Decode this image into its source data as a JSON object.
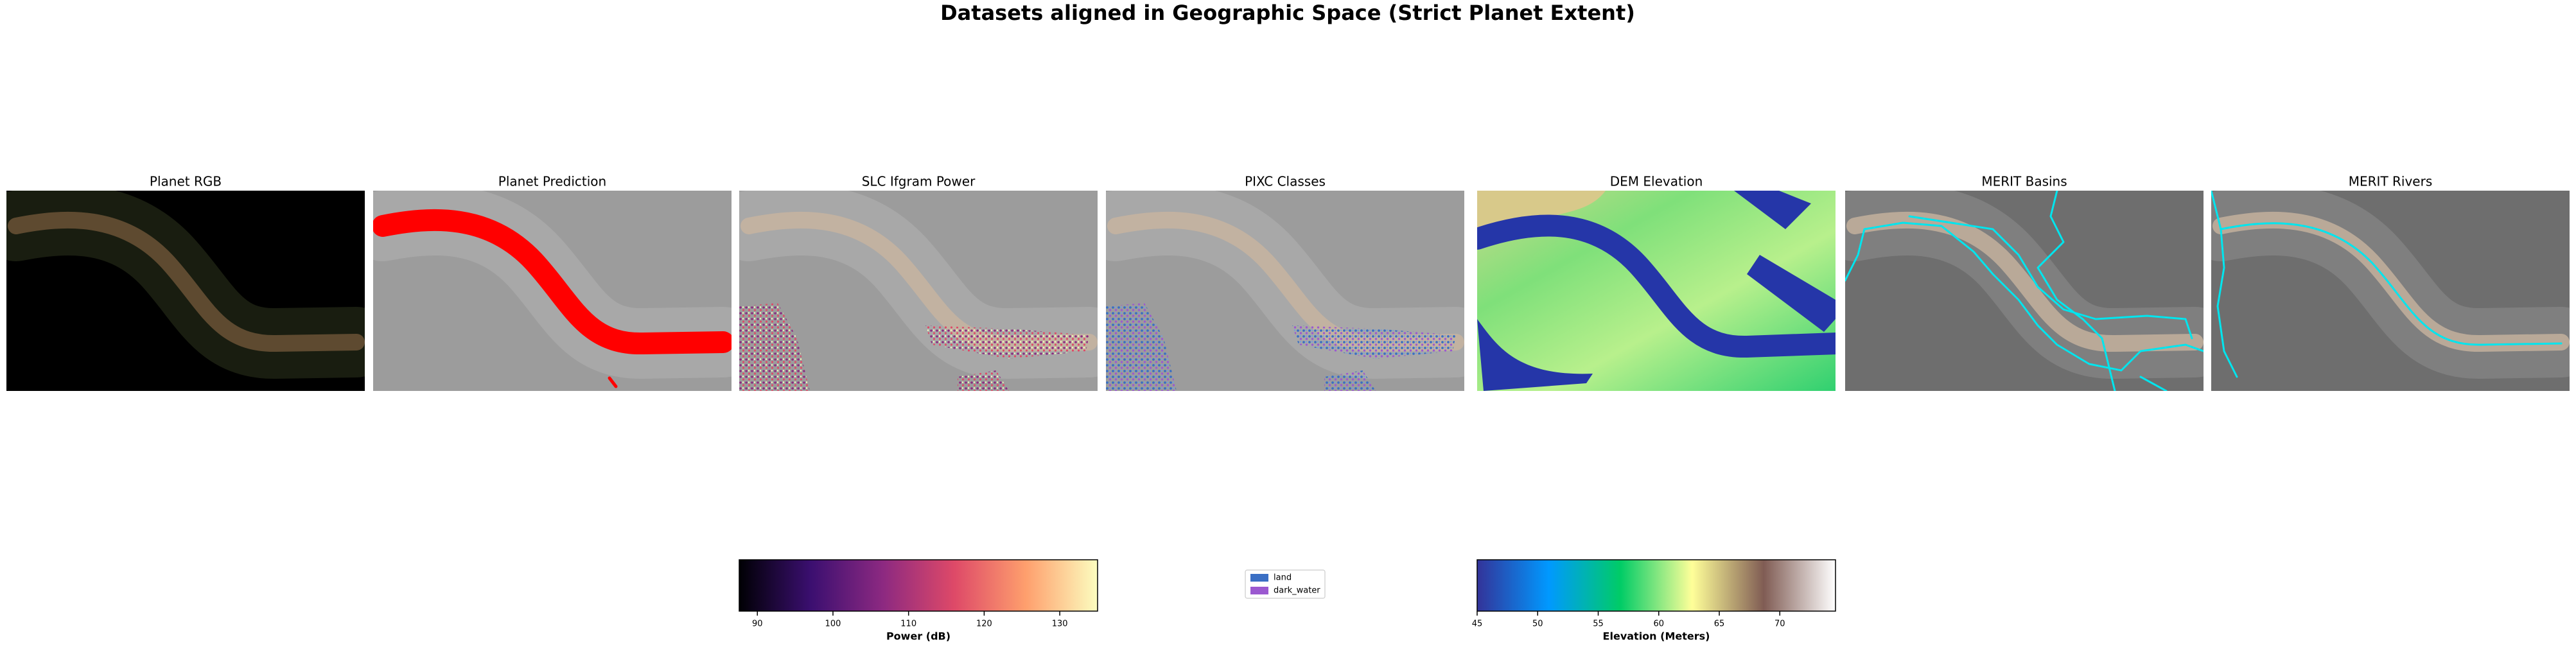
{
  "title": "Datasets aligned in Geographic Space (Strict Planet Extent)",
  "panels": [
    {
      "title": "Planet RGB"
    },
    {
      "title": "Planet Prediction"
    },
    {
      "title": "SLC Ifgram Power"
    },
    {
      "title": "PIXC Classes"
    },
    {
      "title": "DEM Elevation"
    },
    {
      "title": "MERIT Basins"
    },
    {
      "title": "MERIT Rivers"
    }
  ],
  "colorbars": [
    {
      "label": "Power (dB)",
      "lim": [
        87.6,
        135
      ],
      "ticks": [
        90,
        100,
        110,
        120,
        130
      ],
      "colors": [
        "#000004",
        "#3b0f70",
        "#8c2981",
        "#de4968",
        "#fe9f6d",
        "#fcfdbf"
      ]
    },
    {
      "label": "Elevation (Meters)",
      "lim": [
        45,
        74.6
      ],
      "ticks": [
        45,
        50,
        55,
        60,
        65,
        70
      ],
      "colors": [
        "#333399",
        "#0099ff",
        "#00cc66",
        "#ffff99",
        "#805c54",
        "#ffffff"
      ]
    }
  ],
  "legend": [
    {
      "name": "land",
      "color": "#3a6fc4"
    },
    {
      "name": "dark_water",
      "color": "#9b59d0"
    }
  ]
}
